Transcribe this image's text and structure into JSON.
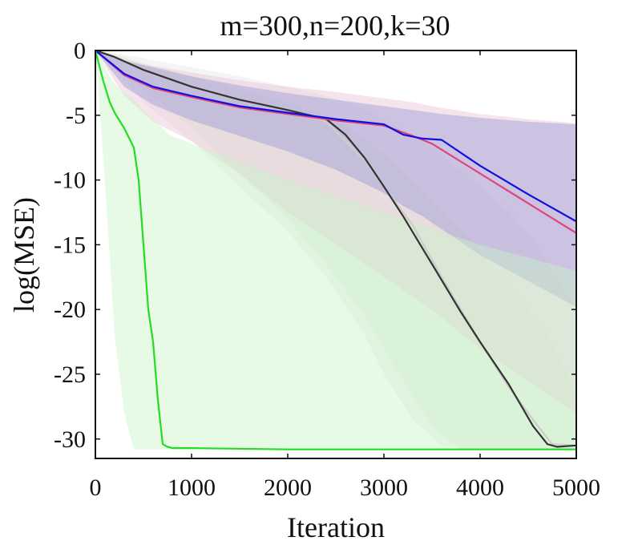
{
  "chart_data": {
    "type": "line",
    "title": "m=300,n=200,k=30",
    "xlabel": "Iteration",
    "ylabel": "log(MSE)",
    "xlim": [
      0,
      5000
    ],
    "ylim": [
      -31.5,
      0
    ],
    "xticks": [
      0,
      1000,
      2000,
      3000,
      4000,
      5000
    ],
    "xtick_labels": [
      "0",
      "1000",
      "2000",
      "3000",
      "4000",
      "5000"
    ],
    "yticks": [
      0,
      -5,
      -10,
      -15,
      -20,
      -25,
      -30
    ],
    "ytick_labels": [
      "0",
      "-5",
      "-10",
      "-15",
      "-20",
      "-25",
      "-30"
    ],
    "grid": false,
    "legend": "none",
    "series": [
      {
        "color": "#cccccc",
        "band_color": "#e6e6e6",
        "x": [
          0,
          200,
          500,
          1000,
          1500,
          2000,
          2400,
          2800,
          3000,
          3300,
          3600,
          4000,
          4300,
          4600,
          4750,
          5000
        ],
        "y": [
          0,
          -0.5,
          -1.5,
          -2.8,
          -3.8,
          -4.6,
          -5.5,
          -8.5,
          -10.5,
          -13.5,
          -17.5,
          -22.5,
          -26.0,
          -29.0,
          -30.4,
          -30.5
        ],
        "band_upper": [
          0,
          -0.2,
          -0.6,
          -1.3,
          -2.0,
          -2.8,
          -3.5,
          -4.5,
          -5.3,
          -6.5,
          -8.0,
          -10.5,
          -12.5,
          -15.0,
          -17.0,
          -20.0
        ],
        "band_lower": [
          0,
          -1.5,
          -4.0,
          -7.0,
          -10.5,
          -14.0,
          -17.5,
          -22.0,
          -25.0,
          -28.5,
          -30.5,
          -30.8,
          -30.8,
          -30.8,
          -30.8,
          -30.8
        ]
      },
      {
        "color": "#333333",
        "band_color": "#d9ead3",
        "x": [
          0,
          200,
          500,
          1000,
          1500,
          2000,
          2400,
          2600,
          2800,
          3000,
          3200,
          3500,
          3800,
          4000,
          4300,
          4550,
          4700,
          4800,
          5000
        ],
        "y": [
          0,
          -0.5,
          -1.5,
          -2.8,
          -3.8,
          -4.6,
          -5.3,
          -6.5,
          -8.3,
          -10.5,
          -12.8,
          -16.5,
          -20.2,
          -22.5,
          -25.8,
          -29.0,
          -30.4,
          -30.6,
          -30.5
        ],
        "band_upper": [
          0,
          -0.3,
          -1.0,
          -2.0,
          -3.0,
          -4.0,
          -5.0,
          -5.8,
          -6.8,
          -8.0,
          -9.3,
          -11.5,
          -13.8,
          -15.5,
          -18.0,
          -20.5,
          -22.0,
          -23.5,
          -26.5
        ],
        "band_lower": [
          0,
          -1.0,
          -3.0,
          -6.0,
          -9.5,
          -13.0,
          -16.5,
          -18.5,
          -20.5,
          -23.0,
          -25.5,
          -29.0,
          -30.8,
          -30.8,
          -30.8,
          -30.8,
          -30.8,
          -30.8,
          -30.8
        ]
      },
      {
        "color": "#e0457a",
        "band_color": "#e8c4d4",
        "x": [
          0,
          300,
          600,
          1000,
          1500,
          2000,
          2500,
          3000,
          3300,
          3500,
          4000,
          4500,
          5000
        ],
        "y": [
          0,
          -1.9,
          -2.9,
          -3.6,
          -4.4,
          -4.9,
          -5.4,
          -5.8,
          -6.6,
          -7.2,
          -9.5,
          -11.8,
          -14.1
        ],
        "band_upper": [
          0,
          -0.7,
          -1.2,
          -1.7,
          -2.3,
          -2.8,
          -3.2,
          -3.7,
          -4.0,
          -4.3,
          -4.9,
          -5.3,
          -5.6
        ],
        "band_lower": [
          0,
          -3.5,
          -5.5,
          -7.0,
          -9.5,
          -12.5,
          -15.0,
          -17.5,
          -19.0,
          -20.0,
          -23.0,
          -25.5,
          -28.0
        ]
      },
      {
        "color": "#1010e0",
        "band_color": "#9c9ad8",
        "x": [
          0,
          300,
          600,
          1000,
          1500,
          2000,
          2500,
          3000,
          3200,
          3400,
          3600,
          4000,
          4500,
          5000
        ],
        "y": [
          0,
          -1.8,
          -2.8,
          -3.5,
          -4.3,
          -4.8,
          -5.3,
          -5.7,
          -6.5,
          -6.8,
          -6.9,
          -8.9,
          -11.1,
          -13.2
        ],
        "band_upper": [
          0,
          -0.8,
          -1.3,
          -2.0,
          -2.7,
          -3.3,
          -3.8,
          -4.3,
          -4.5,
          -4.7,
          -4.9,
          -5.2,
          -5.5,
          -5.7
        ],
        "band_lower": [
          0,
          -2.8,
          -4.2,
          -5.4,
          -6.6,
          -7.8,
          -9.2,
          -11.0,
          -12.0,
          -12.8,
          -13.8,
          -15.8,
          -17.8,
          -19.8
        ]
      },
      {
        "color": "#22dd22",
        "band_color": "#c8f3c8",
        "x": [
          0,
          80,
          150,
          200,
          300,
          400,
          450,
          500,
          550,
          600,
          650,
          700,
          750,
          800,
          1000,
          2000,
          3000,
          4000,
          5000
        ],
        "y": [
          0,
          -2.3,
          -4.0,
          -4.8,
          -6.0,
          -7.5,
          -10.0,
          -15.0,
          -20.0,
          -22.5,
          -27.0,
          -30.4,
          -30.6,
          -30.7,
          -30.7,
          -30.8,
          -30.8,
          -30.8,
          -30.8
        ],
        "band_upper": [
          0,
          -1.0,
          -2.0,
          -2.6,
          -3.2,
          -3.8,
          -4.2,
          -4.6,
          -5.0,
          -5.3,
          -5.6,
          -6.0,
          -6.4,
          -6.6,
          -7.2,
          -10.0,
          -12.5,
          -15.0,
          -17.0
        ],
        "band_lower": [
          0,
          -8.0,
          -16.0,
          -22.0,
          -28.0,
          -30.8,
          -30.8,
          -30.8,
          -30.8,
          -30.8,
          -30.8,
          -30.8,
          -30.8,
          -30.8,
          -30.8,
          -30.8,
          -30.8,
          -30.8,
          -30.8
        ]
      }
    ]
  }
}
